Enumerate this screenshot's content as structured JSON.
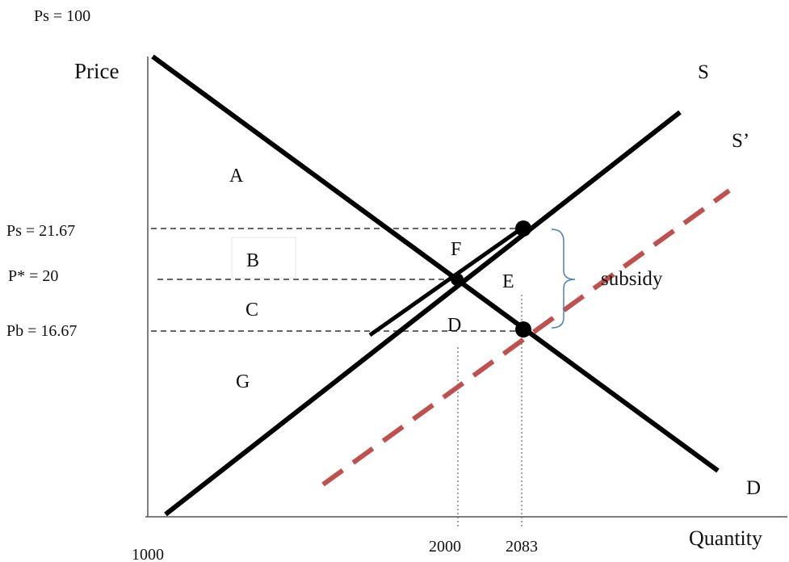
{
  "labels": {
    "ps_top": "Ps = 100",
    "price_axis": "Price",
    "quantity_axis": "Quantity",
    "supply": "S",
    "supply_shifted": "S’",
    "demand": "D",
    "ps_level": "Ps = 21.67",
    "p_star": "P* = 20",
    "pb_level": "Pb = 16.67",
    "q_origin": "1000",
    "q_eq": "2000",
    "q_sub": "2083",
    "subsidy": "subsidy"
  },
  "areas": {
    "a": "A",
    "b": "B",
    "c": "C",
    "d": "D",
    "e": "E",
    "f": "F",
    "g": "G"
  },
  "colors": {
    "curve": "#000000",
    "shifted_supply": "#c0504d",
    "brace": "#4a7ebb",
    "guide": "#333333",
    "axis": "#555555"
  }
}
